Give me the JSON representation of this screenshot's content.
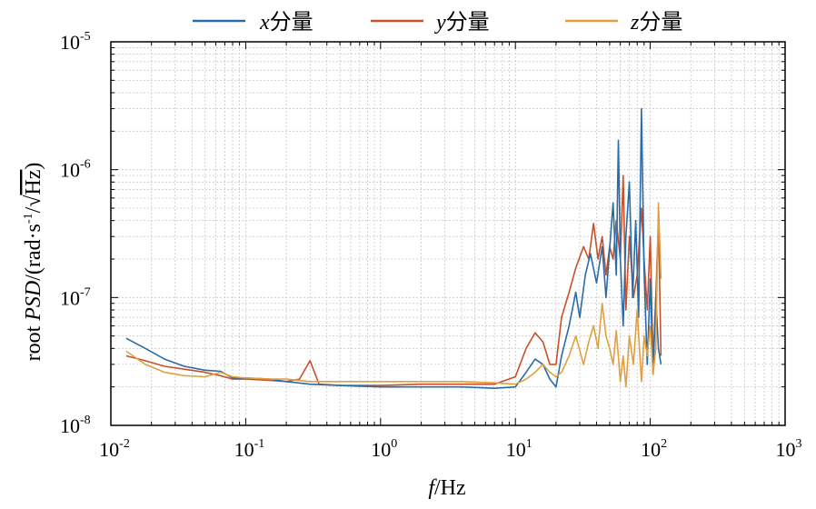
{
  "chart_data": {
    "type": "line",
    "xlabel": {
      "italic": "f",
      "rest": "/Hz"
    },
    "ylabel": {
      "prefix": "root ",
      "italic": "PSD",
      "rest": "/(rad·s",
      "sup": "-1",
      "slash": "/",
      "sqrt_arg": "Hz",
      "close": ")"
    },
    "x_scale": "log",
    "y_scale": "log",
    "xlim": [
      0.01,
      1000
    ],
    "ylim": [
      1e-08,
      1e-05
    ],
    "grid": true,
    "legend_position": "top",
    "x_ticks": [
      {
        "base": "10",
        "exp": "-2"
      },
      {
        "base": "10",
        "exp": "-1"
      },
      {
        "base": "10",
        "exp": "0"
      },
      {
        "base": "10",
        "exp": "1"
      },
      {
        "base": "10",
        "exp": "2"
      },
      {
        "base": "10",
        "exp": "3"
      }
    ],
    "y_ticks": [
      {
        "base": "10",
        "exp": "-8"
      },
      {
        "base": "10",
        "exp": "-7"
      },
      {
        "base": "10",
        "exp": "-6"
      },
      {
        "base": "10",
        "exp": "-5"
      }
    ],
    "series": [
      {
        "name_italic": "x",
        "name_rest": "分量",
        "color": "#2a6ca8",
        "points": [
          [
            0.013,
            4.8e-08
          ],
          [
            0.018,
            4e-08
          ],
          [
            0.025,
            3.3e-08
          ],
          [
            0.035,
            2.9e-08
          ],
          [
            0.05,
            2.7e-08
          ],
          [
            0.065,
            2.65e-08
          ],
          [
            0.08,
            2.35e-08
          ],
          [
            0.1,
            2.35e-08
          ],
          [
            0.15,
            2.3e-08
          ],
          [
            0.2,
            2.2e-08
          ],
          [
            0.3,
            2.1e-08
          ],
          [
            0.5,
            2.05e-08
          ],
          [
            1,
            2e-08
          ],
          [
            2,
            2e-08
          ],
          [
            4,
            2e-08
          ],
          [
            7,
            1.95e-08
          ],
          [
            10,
            2e-08
          ],
          [
            12,
            2.6e-08
          ],
          [
            14,
            3.3e-08
          ],
          [
            16,
            3e-08
          ],
          [
            18,
            2.3e-08
          ],
          [
            20,
            2e-08
          ],
          [
            22,
            3.5e-08
          ],
          [
            25,
            6e-08
          ],
          [
            28,
            1.1e-07
          ],
          [
            30,
            7e-08
          ],
          [
            33,
            1.5e-07
          ],
          [
            36,
            2.2e-07
          ],
          [
            40,
            1.3e-07
          ],
          [
            44,
            2.5e-07
          ],
          [
            47,
            1e-07
          ],
          [
            50,
            2.4e-07
          ],
          [
            53,
            5.5e-07
          ],
          [
            56,
            1.5e-07
          ],
          [
            58,
            1.7e-06
          ],
          [
            60,
            2e-07
          ],
          [
            63,
            6e-08
          ],
          [
            66,
            3e-07
          ],
          [
            70,
            8e-07
          ],
          [
            74,
            1e-07
          ],
          [
            78,
            4e-07
          ],
          [
            82,
            7e-08
          ],
          [
            86,
            3e-06
          ],
          [
            90,
            1.6e-07
          ],
          [
            95,
            3e-08
          ],
          [
            100,
            1.4e-07
          ],
          [
            105,
            2.5e-08
          ],
          [
            110,
            1e-07
          ],
          [
            115,
            4e-08
          ],
          [
            120,
            3e-08
          ]
        ]
      },
      {
        "name_italic": "y",
        "name_rest": "分量",
        "color": "#c8502a",
        "points": [
          [
            0.013,
            3.5e-08
          ],
          [
            0.018,
            3.2e-08
          ],
          [
            0.025,
            2.9e-08
          ],
          [
            0.035,
            2.75e-08
          ],
          [
            0.05,
            2.6e-08
          ],
          [
            0.065,
            2.45e-08
          ],
          [
            0.08,
            2.3e-08
          ],
          [
            0.1,
            2.3e-08
          ],
          [
            0.15,
            2.25e-08
          ],
          [
            0.2,
            2.2e-08
          ],
          [
            0.25,
            2.3e-08
          ],
          [
            0.3,
            3.2e-08
          ],
          [
            0.35,
            2.1e-08
          ],
          [
            0.5,
            2.05e-08
          ],
          [
            1,
            2.05e-08
          ],
          [
            2,
            2.1e-08
          ],
          [
            4,
            2.1e-08
          ],
          [
            7,
            2.1e-08
          ],
          [
            10,
            2.4e-08
          ],
          [
            12,
            4e-08
          ],
          [
            14,
            5.3e-08
          ],
          [
            16,
            4.5e-08
          ],
          [
            18,
            3e-08
          ],
          [
            20,
            3e-08
          ],
          [
            22,
            7e-08
          ],
          [
            25,
            1.1e-07
          ],
          [
            28,
            1.7e-07
          ],
          [
            32,
            2.5e-07
          ],
          [
            35,
            2e-07
          ],
          [
            38,
            3.8e-07
          ],
          [
            41,
            2e-07
          ],
          [
            44,
            3e-07
          ],
          [
            47,
            1.5e-07
          ],
          [
            50,
            2.5e-07
          ],
          [
            53,
            2e-07
          ],
          [
            56,
            4e-07
          ],
          [
            60,
            2e-07
          ],
          [
            63,
            9e-07
          ],
          [
            66,
            8e-08
          ],
          [
            70,
            3e-07
          ],
          [
            75,
            1e-07
          ],
          [
            80,
            1.5e-07
          ],
          [
            86,
            5e-07
          ],
          [
            90,
            2e-07
          ],
          [
            95,
            8e-08
          ],
          [
            100,
            3e-07
          ],
          [
            105,
            3e-08
          ],
          [
            110,
            1e-07
          ],
          [
            115,
            4e-07
          ],
          [
            120,
            3.5e-08
          ]
        ]
      },
      {
        "name_italic": "z",
        "name_rest": "分量",
        "color": "#e0a040",
        "points": [
          [
            0.013,
            3.8e-08
          ],
          [
            0.018,
            3e-08
          ],
          [
            0.025,
            2.6e-08
          ],
          [
            0.035,
            2.45e-08
          ],
          [
            0.05,
            2.4e-08
          ],
          [
            0.065,
            2.6e-08
          ],
          [
            0.08,
            2.4e-08
          ],
          [
            0.1,
            2.35e-08
          ],
          [
            0.15,
            2.3e-08
          ],
          [
            0.2,
            2.3e-08
          ],
          [
            0.3,
            2.2e-08
          ],
          [
            0.5,
            2.2e-08
          ],
          [
            1,
            2.2e-08
          ],
          [
            2,
            2.2e-08
          ],
          [
            4,
            2.2e-08
          ],
          [
            7,
            2.15e-08
          ],
          [
            10,
            2.1e-08
          ],
          [
            12,
            2.3e-08
          ],
          [
            14,
            2.6e-08
          ],
          [
            16,
            3e-08
          ],
          [
            18,
            2.6e-08
          ],
          [
            20,
            2.4e-08
          ],
          [
            22,
            2.6e-08
          ],
          [
            25,
            3.5e-08
          ],
          [
            28,
            5e-08
          ],
          [
            32,
            3e-08
          ],
          [
            35,
            4.5e-08
          ],
          [
            38,
            6e-08
          ],
          [
            41,
            4e-08
          ],
          [
            44,
            9e-08
          ],
          [
            47,
            5e-08
          ],
          [
            50,
            4e-08
          ],
          [
            53,
            3e-08
          ],
          [
            56,
            5.5e-08
          ],
          [
            60,
            2.2e-08
          ],
          [
            63,
            3.5e-08
          ],
          [
            66,
            2e-08
          ],
          [
            70,
            5e-08
          ],
          [
            75,
            3e-08
          ],
          [
            80,
            8e-08
          ],
          [
            86,
            2.2e-08
          ],
          [
            90,
            5e-08
          ],
          [
            95,
            3.5e-08
          ],
          [
            100,
            6e-08
          ],
          [
            105,
            2.5e-08
          ],
          [
            110,
            4e-08
          ],
          [
            115,
            5.5e-07
          ],
          [
            120,
            1.4e-07
          ]
        ]
      }
    ]
  }
}
